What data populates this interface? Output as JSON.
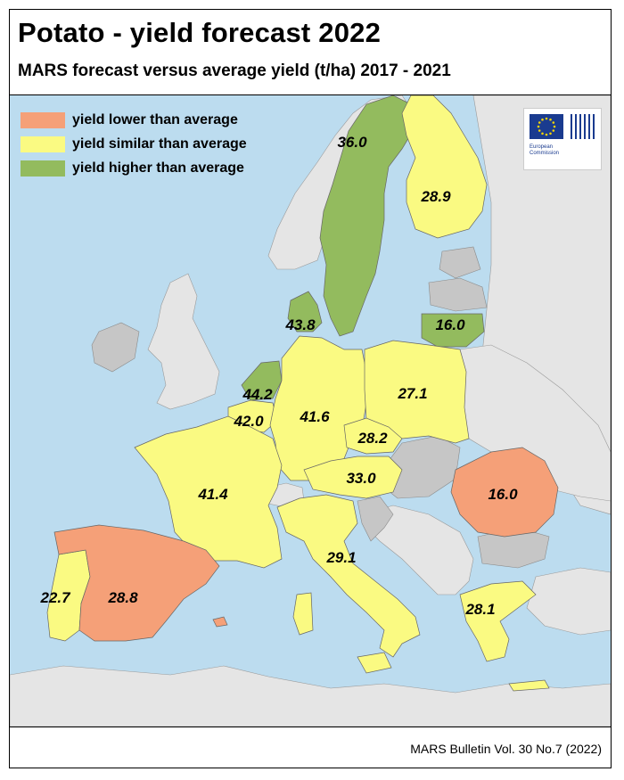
{
  "title": "Potato - yield forecast 2022",
  "subtitle": "MARS forecast versus average yield (t/ha) 2017 - 2021",
  "source": "MARS Bulletin Vol. 30 No.7 (2022)",
  "colors": {
    "lower": "#f5a078",
    "similar": "#fafa82",
    "higher": "#93bb5e",
    "no_data": "#c6c6c6",
    "non_eu": "#e5e5e5",
    "sea": "#bcdcef"
  },
  "legend": [
    {
      "label": "yield lower than average",
      "category": "lower"
    },
    {
      "label": "yield similar than average",
      "category": "similar"
    },
    {
      "label": "yield higher than average",
      "category": "higher"
    }
  ],
  "logo": {
    "text_line1": "European",
    "text_line2": "Commission"
  },
  "regions": [
    {
      "name": "Sweden",
      "value": "36.0",
      "category": "higher"
    },
    {
      "name": "Finland",
      "value": "28.9",
      "category": "similar"
    },
    {
      "name": "Denmark",
      "value": "43.8",
      "category": "higher"
    },
    {
      "name": "Lithuania",
      "value": "16.0",
      "category": "higher"
    },
    {
      "name": "Netherlands",
      "value": "44.2",
      "category": "higher"
    },
    {
      "name": "Belgium",
      "value": "42.0",
      "category": "similar"
    },
    {
      "name": "Germany",
      "value": "41.6",
      "category": "similar"
    },
    {
      "name": "Poland",
      "value": "27.1",
      "category": "similar"
    },
    {
      "name": "Czechia",
      "value": "28.2",
      "category": "similar"
    },
    {
      "name": "Austria",
      "value": "33.0",
      "category": "similar"
    },
    {
      "name": "France",
      "value": "41.4",
      "category": "similar"
    },
    {
      "name": "Romania",
      "value": "16.0",
      "category": "lower"
    },
    {
      "name": "Italy",
      "value": "29.1",
      "category": "similar"
    },
    {
      "name": "Portugal",
      "value": "22.7",
      "category": "similar"
    },
    {
      "name": "Spain",
      "value": "28.8",
      "category": "lower"
    },
    {
      "name": "Greece",
      "value": "28.1",
      "category": "similar"
    }
  ]
}
